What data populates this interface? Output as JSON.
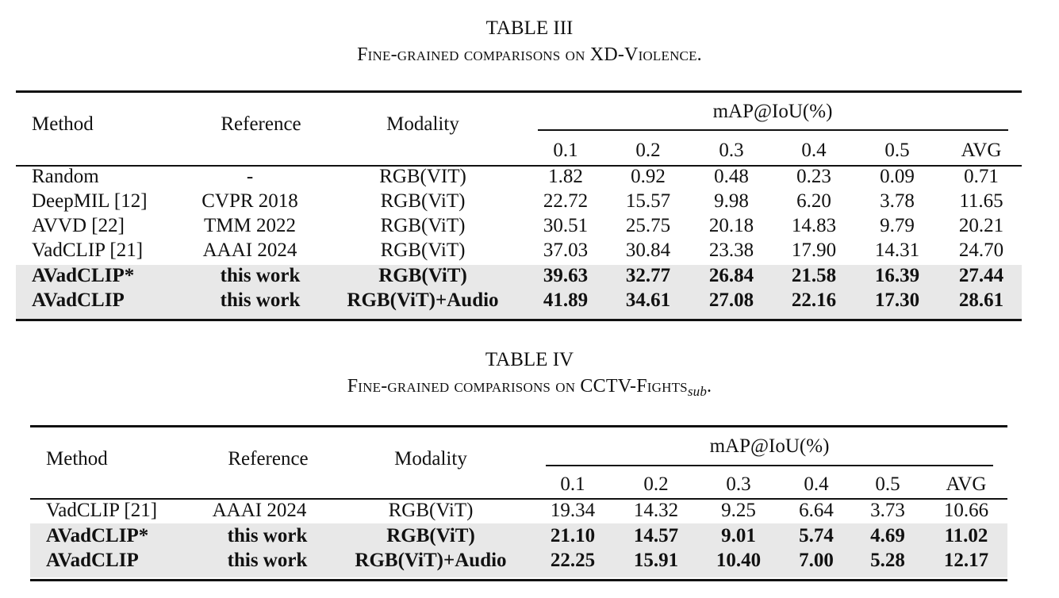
{
  "tables": [
    {
      "number": "TABLE III",
      "caption": "Fine-grained comparisons on XD-Violence.",
      "caption_sub": "",
      "headers": {
        "method": "Method",
        "reference": "Reference",
        "modality": "Modality",
        "group": "mAP@IoU(%)",
        "iou": [
          "0.1",
          "0.2",
          "0.3",
          "0.4",
          "0.5",
          "AVG"
        ]
      },
      "rows": [
        {
          "method": "Random",
          "reference": "-",
          "modality": "RGB(VIT)",
          "values": [
            "1.82",
            "0.92",
            "0.48",
            "0.23",
            "0.09",
            "0.71"
          ],
          "highlight": false
        },
        {
          "method": "DeepMIL [12]",
          "reference": "CVPR 2018",
          "modality": "RGB(ViT)",
          "values": [
            "22.72",
            "15.57",
            "9.98",
            "6.20",
            "3.78",
            "11.65"
          ],
          "highlight": false
        },
        {
          "method": "AVVD [22]",
          "reference": "TMM 2022",
          "modality": "RGB(ViT)",
          "values": [
            "30.51",
            "25.75",
            "20.18",
            "14.83",
            "9.79",
            "20.21"
          ],
          "highlight": false
        },
        {
          "method": "VadCLIP [21]",
          "reference": "AAAI 2024",
          "modality": "RGB(ViT)",
          "values": [
            "37.03",
            "30.84",
            "23.38",
            "17.90",
            "14.31",
            "24.70"
          ],
          "highlight": false
        },
        {
          "method": "AVadCLIP*",
          "reference": "this work",
          "modality": "RGB(ViT)",
          "values": [
            "39.63",
            "32.77",
            "26.84",
            "21.58",
            "16.39",
            "27.44"
          ],
          "highlight": true
        },
        {
          "method": "AVadCLIP",
          "reference": "this work",
          "modality": "RGB(ViT)+Audio",
          "values": [
            "41.89",
            "34.61",
            "27.08",
            "22.16",
            "17.30",
            "28.61"
          ],
          "highlight": true
        }
      ]
    },
    {
      "number": "TABLE IV",
      "caption": "Fine-grained comparisons on CCTV-Fights",
      "caption_sub": "sub",
      "headers": {
        "method": "Method",
        "reference": "Reference",
        "modality": "Modality",
        "group": "mAP@IoU(%)",
        "iou": [
          "0.1",
          "0.2",
          "0.3",
          "0.4",
          "0.5",
          "AVG"
        ]
      },
      "rows": [
        {
          "method": "VadCLIP [21]",
          "reference": "AAAI 2024",
          "modality": "RGB(ViT)",
          "values": [
            "19.34",
            "14.32",
            "9.25",
            "6.64",
            "3.73",
            "10.66"
          ],
          "highlight": false
        },
        {
          "method": "AVadCLIP*",
          "reference": "this work",
          "modality": "RGB(ViT)",
          "values": [
            "21.10",
            "14.57",
            "9.01",
            "5.74",
            "4.69",
            "11.02"
          ],
          "highlight": true
        },
        {
          "method": "AVadCLIP",
          "reference": "this work",
          "modality": "RGB(ViT)+Audio",
          "values": [
            "22.25",
            "15.91",
            "10.40",
            "7.00",
            "5.28",
            "12.17"
          ],
          "highlight": true
        }
      ]
    }
  ]
}
